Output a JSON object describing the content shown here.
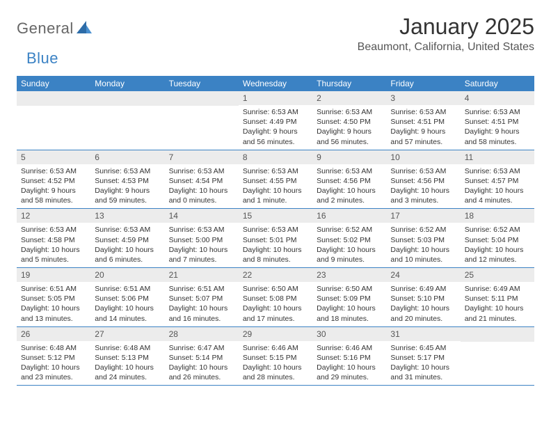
{
  "logo": {
    "textGeneral": "General",
    "textBlue": "Blue"
  },
  "title": "January 2025",
  "location": "Beaumont, California, United States",
  "colors": {
    "headerBg": "#3b82c4",
    "headerText": "#ffffff",
    "dayNumBg": "#ececec",
    "dayNumText": "#555555",
    "bodyText": "#333333",
    "borderColor": "#3b82c4"
  },
  "weekdays": [
    "Sunday",
    "Monday",
    "Tuesday",
    "Wednesday",
    "Thursday",
    "Friday",
    "Saturday"
  ],
  "weeks": [
    [
      {
        "day": "",
        "lines": []
      },
      {
        "day": "",
        "lines": []
      },
      {
        "day": "",
        "lines": []
      },
      {
        "day": "1",
        "lines": [
          "Sunrise: 6:53 AM",
          "Sunset: 4:49 PM",
          "Daylight: 9 hours",
          "and 56 minutes."
        ]
      },
      {
        "day": "2",
        "lines": [
          "Sunrise: 6:53 AM",
          "Sunset: 4:50 PM",
          "Daylight: 9 hours",
          "and 56 minutes."
        ]
      },
      {
        "day": "3",
        "lines": [
          "Sunrise: 6:53 AM",
          "Sunset: 4:51 PM",
          "Daylight: 9 hours",
          "and 57 minutes."
        ]
      },
      {
        "day": "4",
        "lines": [
          "Sunrise: 6:53 AM",
          "Sunset: 4:51 PM",
          "Daylight: 9 hours",
          "and 58 minutes."
        ]
      }
    ],
    [
      {
        "day": "5",
        "lines": [
          "Sunrise: 6:53 AM",
          "Sunset: 4:52 PM",
          "Daylight: 9 hours",
          "and 58 minutes."
        ]
      },
      {
        "day": "6",
        "lines": [
          "Sunrise: 6:53 AM",
          "Sunset: 4:53 PM",
          "Daylight: 9 hours",
          "and 59 minutes."
        ]
      },
      {
        "day": "7",
        "lines": [
          "Sunrise: 6:53 AM",
          "Sunset: 4:54 PM",
          "Daylight: 10 hours",
          "and 0 minutes."
        ]
      },
      {
        "day": "8",
        "lines": [
          "Sunrise: 6:53 AM",
          "Sunset: 4:55 PM",
          "Daylight: 10 hours",
          "and 1 minute."
        ]
      },
      {
        "day": "9",
        "lines": [
          "Sunrise: 6:53 AM",
          "Sunset: 4:56 PM",
          "Daylight: 10 hours",
          "and 2 minutes."
        ]
      },
      {
        "day": "10",
        "lines": [
          "Sunrise: 6:53 AM",
          "Sunset: 4:56 PM",
          "Daylight: 10 hours",
          "and 3 minutes."
        ]
      },
      {
        "day": "11",
        "lines": [
          "Sunrise: 6:53 AM",
          "Sunset: 4:57 PM",
          "Daylight: 10 hours",
          "and 4 minutes."
        ]
      }
    ],
    [
      {
        "day": "12",
        "lines": [
          "Sunrise: 6:53 AM",
          "Sunset: 4:58 PM",
          "Daylight: 10 hours",
          "and 5 minutes."
        ]
      },
      {
        "day": "13",
        "lines": [
          "Sunrise: 6:53 AM",
          "Sunset: 4:59 PM",
          "Daylight: 10 hours",
          "and 6 minutes."
        ]
      },
      {
        "day": "14",
        "lines": [
          "Sunrise: 6:53 AM",
          "Sunset: 5:00 PM",
          "Daylight: 10 hours",
          "and 7 minutes."
        ]
      },
      {
        "day": "15",
        "lines": [
          "Sunrise: 6:53 AM",
          "Sunset: 5:01 PM",
          "Daylight: 10 hours",
          "and 8 minutes."
        ]
      },
      {
        "day": "16",
        "lines": [
          "Sunrise: 6:52 AM",
          "Sunset: 5:02 PM",
          "Daylight: 10 hours",
          "and 9 minutes."
        ]
      },
      {
        "day": "17",
        "lines": [
          "Sunrise: 6:52 AM",
          "Sunset: 5:03 PM",
          "Daylight: 10 hours",
          "and 10 minutes."
        ]
      },
      {
        "day": "18",
        "lines": [
          "Sunrise: 6:52 AM",
          "Sunset: 5:04 PM",
          "Daylight: 10 hours",
          "and 12 minutes."
        ]
      }
    ],
    [
      {
        "day": "19",
        "lines": [
          "Sunrise: 6:51 AM",
          "Sunset: 5:05 PM",
          "Daylight: 10 hours",
          "and 13 minutes."
        ]
      },
      {
        "day": "20",
        "lines": [
          "Sunrise: 6:51 AM",
          "Sunset: 5:06 PM",
          "Daylight: 10 hours",
          "and 14 minutes."
        ]
      },
      {
        "day": "21",
        "lines": [
          "Sunrise: 6:51 AM",
          "Sunset: 5:07 PM",
          "Daylight: 10 hours",
          "and 16 minutes."
        ]
      },
      {
        "day": "22",
        "lines": [
          "Sunrise: 6:50 AM",
          "Sunset: 5:08 PM",
          "Daylight: 10 hours",
          "and 17 minutes."
        ]
      },
      {
        "day": "23",
        "lines": [
          "Sunrise: 6:50 AM",
          "Sunset: 5:09 PM",
          "Daylight: 10 hours",
          "and 18 minutes."
        ]
      },
      {
        "day": "24",
        "lines": [
          "Sunrise: 6:49 AM",
          "Sunset: 5:10 PM",
          "Daylight: 10 hours",
          "and 20 minutes."
        ]
      },
      {
        "day": "25",
        "lines": [
          "Sunrise: 6:49 AM",
          "Sunset: 5:11 PM",
          "Daylight: 10 hours",
          "and 21 minutes."
        ]
      }
    ],
    [
      {
        "day": "26",
        "lines": [
          "Sunrise: 6:48 AM",
          "Sunset: 5:12 PM",
          "Daylight: 10 hours",
          "and 23 minutes."
        ]
      },
      {
        "day": "27",
        "lines": [
          "Sunrise: 6:48 AM",
          "Sunset: 5:13 PM",
          "Daylight: 10 hours",
          "and 24 minutes."
        ]
      },
      {
        "day": "28",
        "lines": [
          "Sunrise: 6:47 AM",
          "Sunset: 5:14 PM",
          "Daylight: 10 hours",
          "and 26 minutes."
        ]
      },
      {
        "day": "29",
        "lines": [
          "Sunrise: 6:46 AM",
          "Sunset: 5:15 PM",
          "Daylight: 10 hours",
          "and 28 minutes."
        ]
      },
      {
        "day": "30",
        "lines": [
          "Sunrise: 6:46 AM",
          "Sunset: 5:16 PM",
          "Daylight: 10 hours",
          "and 29 minutes."
        ]
      },
      {
        "day": "31",
        "lines": [
          "Sunrise: 6:45 AM",
          "Sunset: 5:17 PM",
          "Daylight: 10 hours",
          "and 31 minutes."
        ]
      },
      {
        "day": "",
        "lines": []
      }
    ]
  ]
}
